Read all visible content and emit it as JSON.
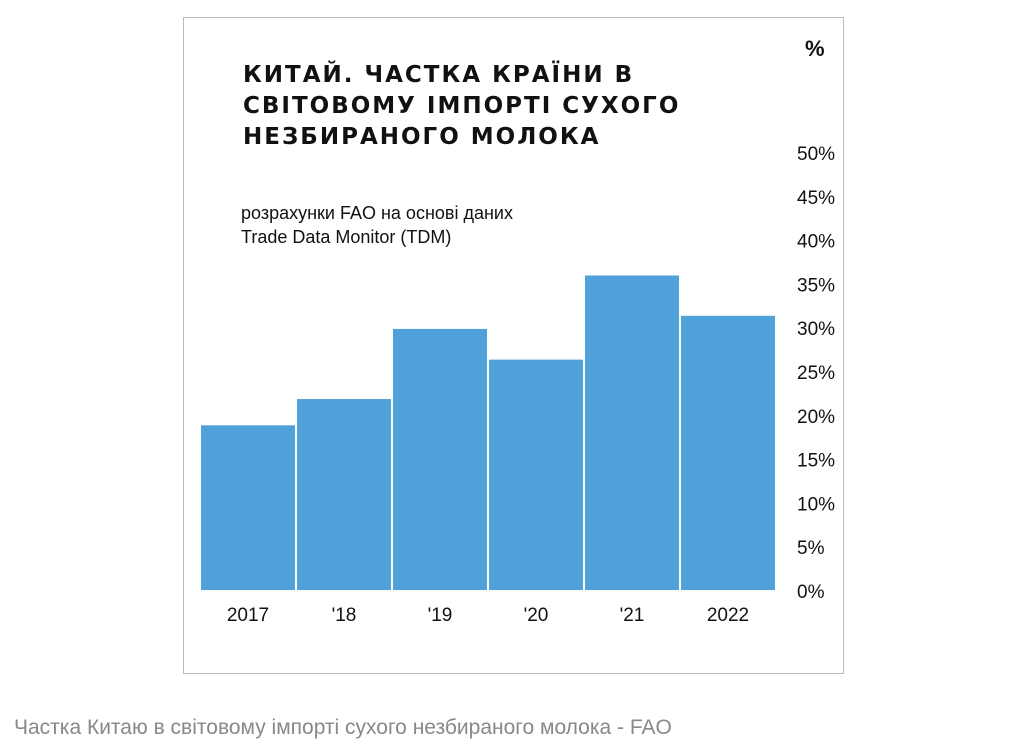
{
  "caption": "Частка Китаю в світовому імпорті сухого незбираного молока - FAO",
  "chart_data": {
    "type": "bar",
    "title": "КИТАЙ. ЧАСТКА КРАЇНИ В\nСВІТОВОМУ ІМПОРТІ СУХОГО\nНЕЗБИРАНОГО МОЛОКА",
    "subtitle": "розрахунки FAO на основі даних\nTrade Data Monitor (TDM)",
    "unit_label": "%",
    "categories": [
      "2017",
      "'18",
      "'19",
      "'20",
      "'21",
      "2022"
    ],
    "values": [
      18.8,
      21.8,
      29.8,
      26.3,
      35.9,
      31.3
    ],
    "ylim": [
      0,
      50
    ],
    "yticks": [
      "0%",
      "5%",
      "10%",
      "15%",
      "20%",
      "25%",
      "30%",
      "35%",
      "40%",
      "45%",
      "50%"
    ],
    "xlabel": "",
    "ylabel": "",
    "grid": false,
    "bar_color": "#4fa1da"
  }
}
